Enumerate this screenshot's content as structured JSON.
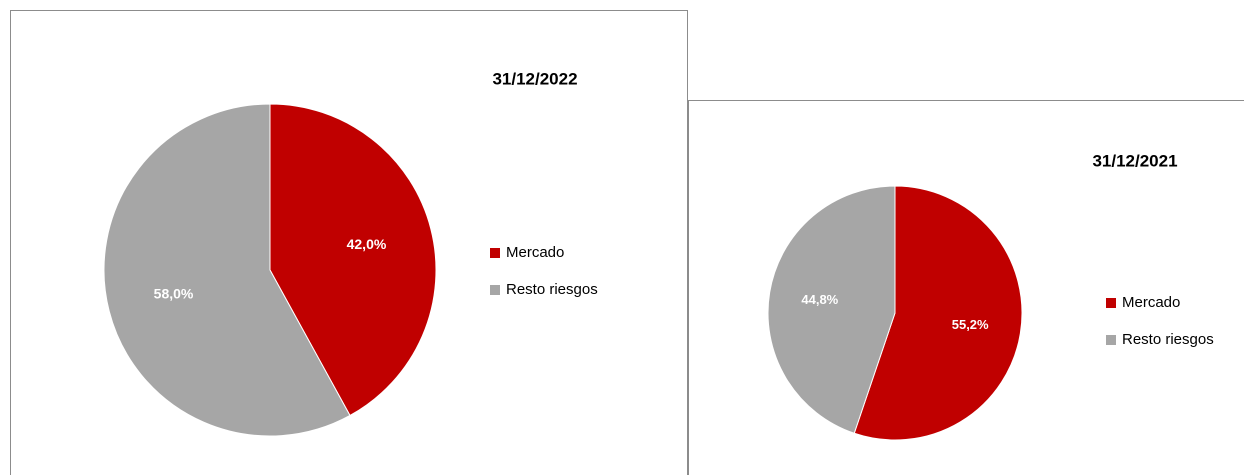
{
  "chart_data": [
    {
      "type": "pie",
      "title": "31/12/2022",
      "categories": [
        "Mercado",
        "Resto riesgos"
      ],
      "values": [
        42.0,
        58.0
      ],
      "value_labels": [
        "42,0%",
        "58,0%"
      ],
      "colors": [
        "#c00000",
        "#a6a6a6"
      ],
      "label_colors": [
        "#ffffff",
        "#ffffff"
      ],
      "legend": "right"
    },
    {
      "type": "pie",
      "title": "31/12/2021",
      "categories": [
        "Mercado",
        "Resto riesgos"
      ],
      "values": [
        55.2,
        44.8
      ],
      "value_labels": [
        "55,2%",
        "44,8%"
      ],
      "colors": [
        "#c00000",
        "#a6a6a6"
      ],
      "label_colors": [
        "#ffffff",
        "#ffffff"
      ],
      "legend": "right"
    }
  ]
}
